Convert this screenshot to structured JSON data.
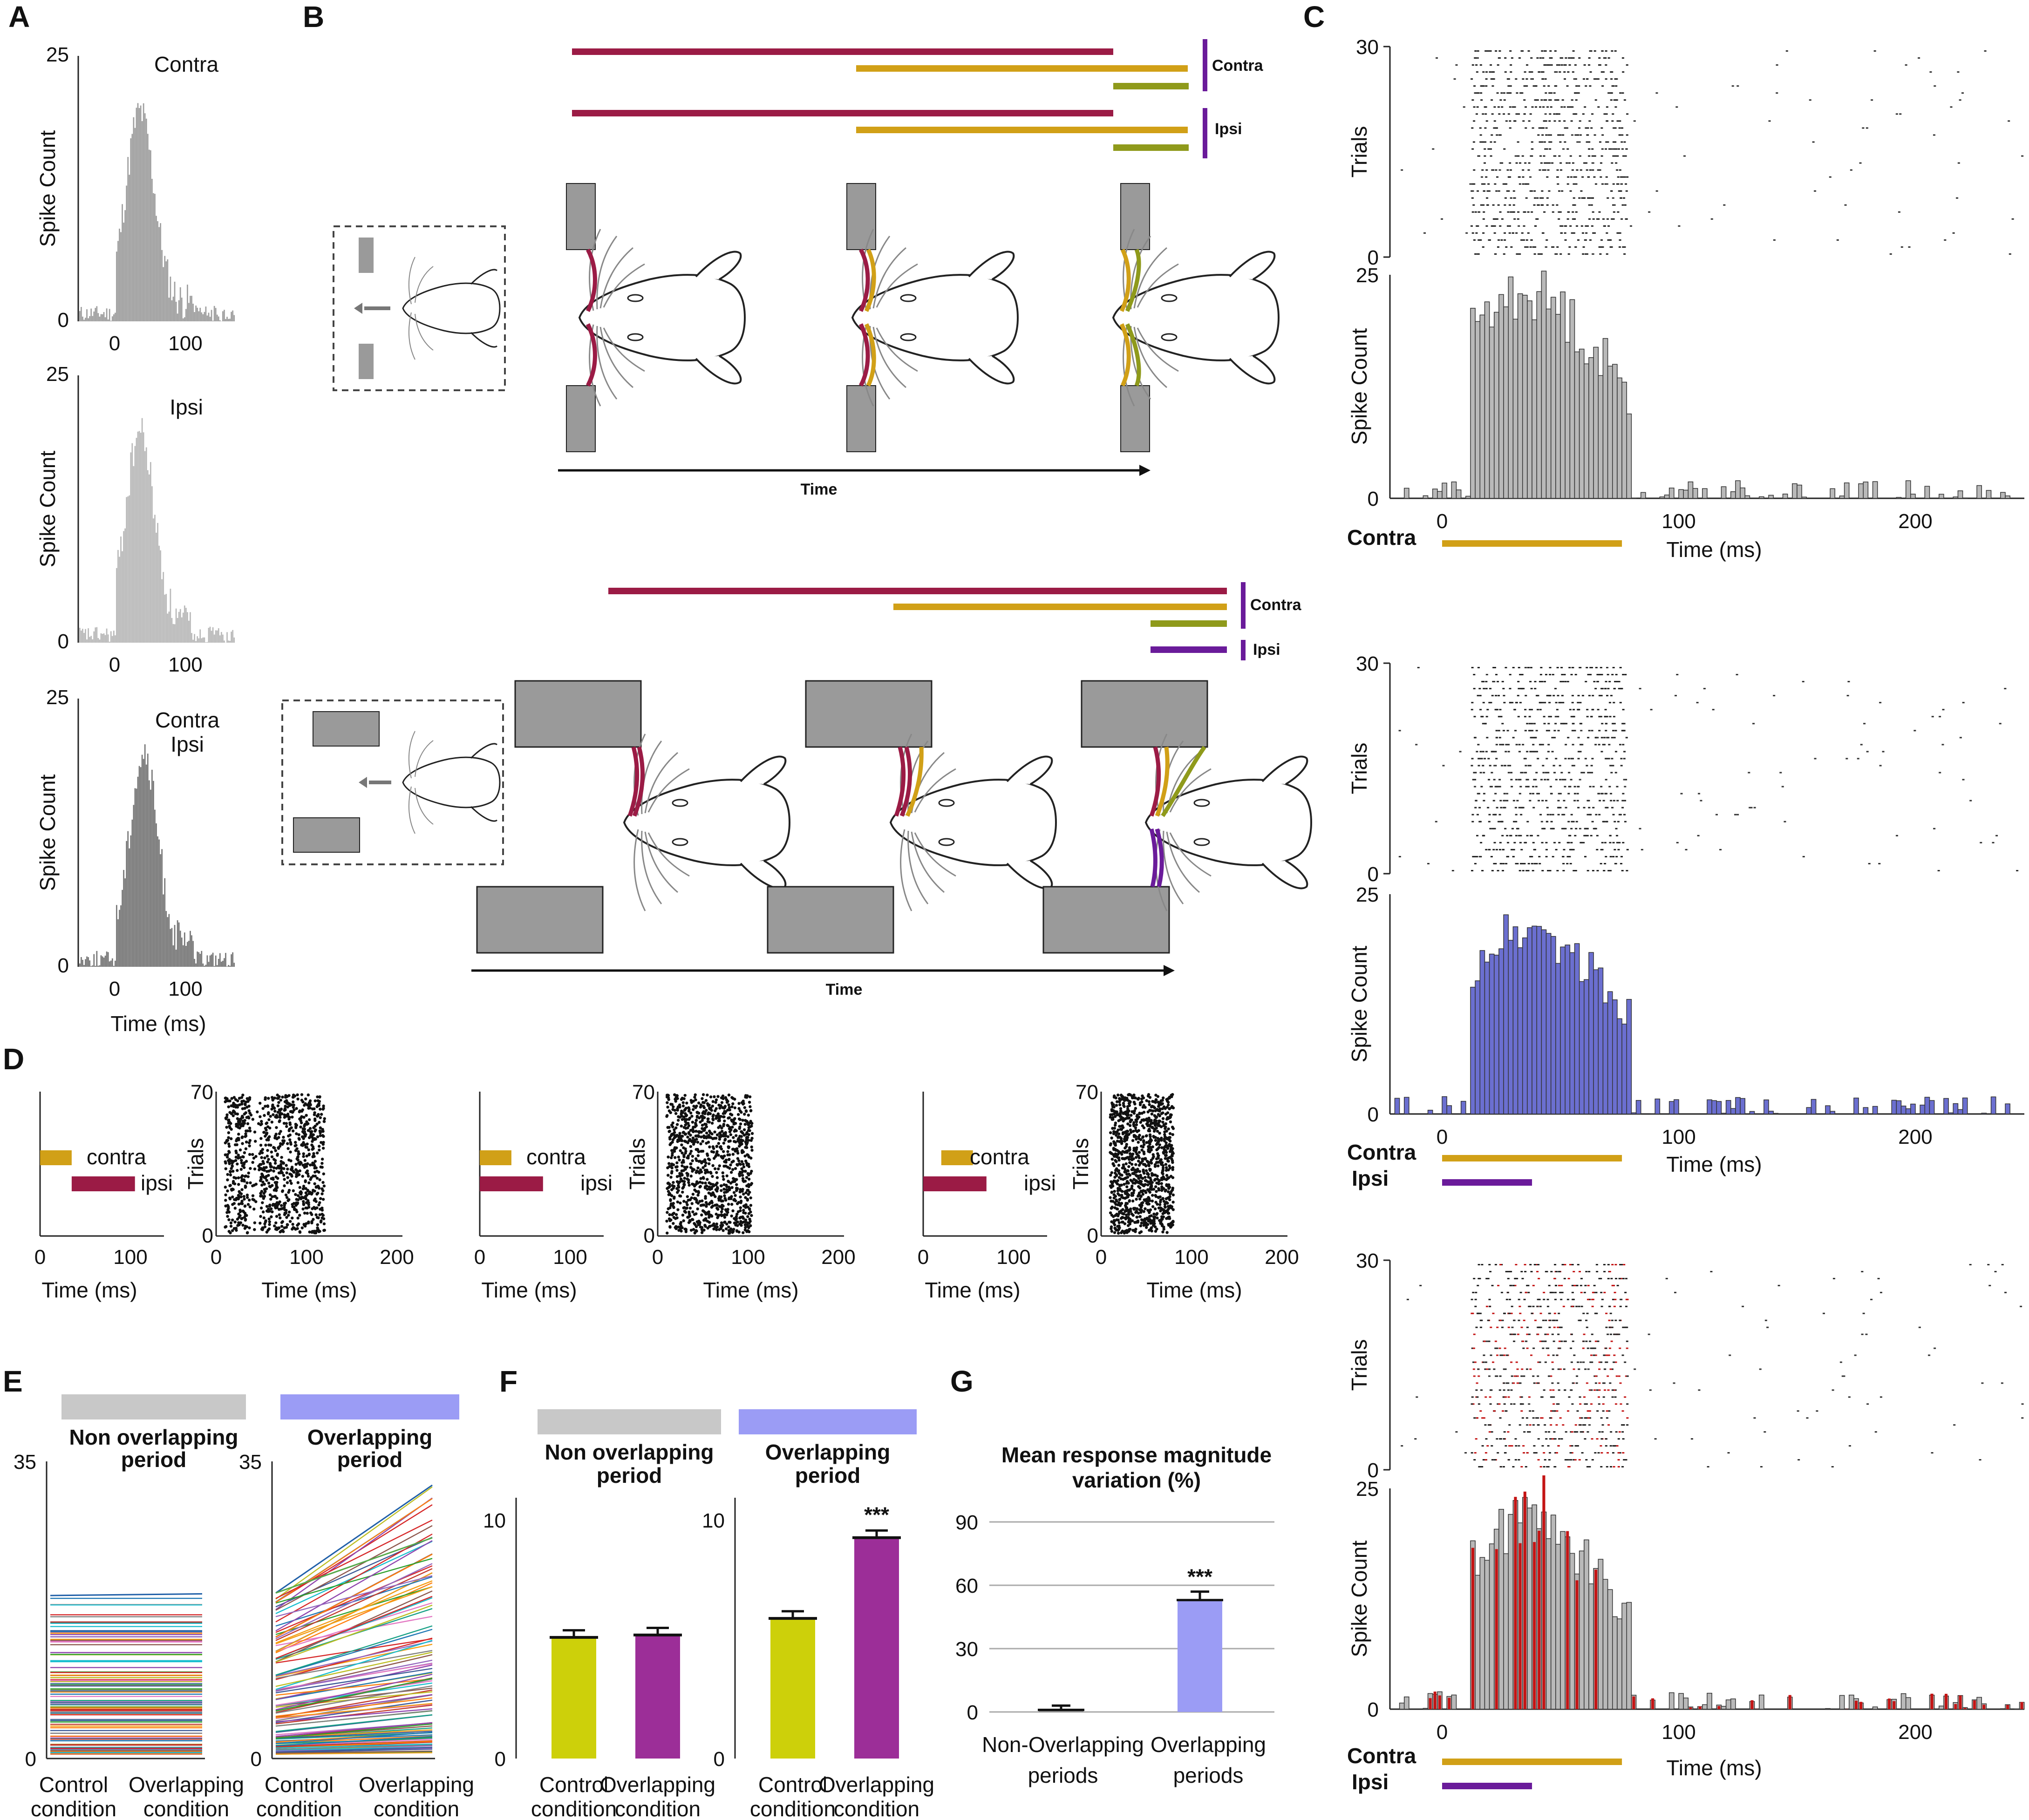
{
  "panels": {
    "A": "A",
    "B": "B",
    "C": "C",
    "D": "D",
    "E": "E",
    "F": "F",
    "G": "G"
  },
  "colors": {
    "hist_dark": "#777777",
    "hist_mid": "#9e9e9e",
    "hist_light": "#b9b9b9",
    "maroon": "#9b1b45",
    "gold": "#d1a017",
    "olive": "#8f9a1b",
    "purple": "#6a1b9a",
    "blue_hist": "#6b6fd0",
    "red_hist": "#c41414",
    "yellow_bar": "#cdd00a",
    "magenta_bar": "#9c2e98",
    "lavender": "#9b9cf5",
    "grey_header": "#c8c8c8",
    "obstacle": "#9a9a9a"
  },
  "panelA": {
    "ylabel": "Spike Count",
    "xlabel": "Time (ms)",
    "histograms": [
      {
        "label": "Contra",
        "ymax": "25",
        "ymin": "0",
        "xticks": [
          "0",
          "100"
        ]
      },
      {
        "label": "Ipsi",
        "ymax": "25",
        "ymin": "0",
        "xticks": [
          "0",
          "100"
        ]
      },
      {
        "label": "Contra",
        "label2": "Ipsi",
        "ymax": "25",
        "ymin": "0",
        "xticks": [
          "0",
          "100"
        ]
      }
    ]
  },
  "panelB": {
    "top": {
      "contra": "Contra",
      "ipsi": "Ipsi",
      "axis": "Time"
    },
    "bottom": {
      "contra": "Contra",
      "ipsi": "Ipsi",
      "axis": "Time"
    }
  },
  "panelC": {
    "trials_label": "Trials",
    "count_label": "Spike Count",
    "xlabel": "Time (ms)",
    "raster_ticks": [
      "30",
      "0"
    ],
    "hist_ticks": [
      "25",
      "0"
    ],
    "xticks": [
      "0",
      "100",
      "200"
    ],
    "rows": [
      {
        "stim1": "Contra",
        "stim2": ""
      },
      {
        "stim1": "Contra",
        "stim2": "Ipsi"
      },
      {
        "stim1": "Contra",
        "stim2": "Ipsi"
      }
    ]
  },
  "panelD": {
    "contra": "contra",
    "ipsi": "ipsi",
    "trials": "Trials",
    "xlabel": "Time (ms)",
    "yticks": [
      "70",
      "0"
    ],
    "stim_xticks": [
      "0",
      "100"
    ],
    "raster_xticks": [
      "0",
      "100",
      "200"
    ],
    "groups": [
      {
        "contra_ms": [
          0,
          35
        ],
        "ipsi_ms": [
          35,
          105
        ]
      },
      {
        "contra_ms": [
          0,
          35
        ],
        "ipsi_ms": [
          0,
          70
        ]
      },
      {
        "contra_ms": [
          20,
          55
        ],
        "ipsi_ms": [
          0,
          70
        ]
      }
    ]
  },
  "panelE": {
    "headers": [
      "Non overlapping\nperiod",
      "Overlapping\nperiod"
    ],
    "yticks": [
      "35",
      "0"
    ],
    "xcats": [
      "Control\ncondition",
      "Overlapping\ncondition"
    ]
  },
  "panelF": {
    "headers": [
      "Non overlapping\nperiod",
      "Overlapping\nperiod"
    ],
    "yticks": [
      "10",
      "0"
    ],
    "xcats": [
      "Control\ncondition",
      "Overlapping\ncondition"
    ],
    "sig": "***"
  },
  "panelG": {
    "title": "Mean response magnitude\nvariation (%)",
    "yticks": [
      "90",
      "60",
      "30",
      "0"
    ],
    "xcats": [
      "Non-Overlapping\nperiods",
      "Overlapping\nperiods"
    ],
    "sig": "***"
  },
  "chart_data": [
    {
      "type": "bar",
      "id": "E-non-overlapping",
      "title": "Non overlapping period",
      "ylim": [
        0,
        35
      ],
      "categories": [
        "Control condition",
        "Overlapping condition"
      ],
      "series_note": "paired lines per neuron; values approximately equal between conditions",
      "example_pairs": [
        [
          19,
          19
        ],
        [
          17,
          17
        ],
        [
          15,
          15
        ],
        [
          13,
          13
        ],
        [
          11,
          11
        ],
        [
          9,
          9
        ],
        [
          7,
          7
        ],
        [
          5,
          5
        ],
        [
          3,
          3
        ],
        [
          1,
          1
        ]
      ]
    },
    {
      "type": "bar",
      "id": "E-overlapping",
      "title": "Overlapping period",
      "ylim": [
        0,
        35
      ],
      "categories": [
        "Control condition",
        "Overlapping condition"
      ],
      "series_note": "paired lines per neuron; values increase in overlapping condition",
      "example_pairs": [
        [
          19,
          32
        ],
        [
          17,
          25
        ],
        [
          15,
          22
        ],
        [
          13,
          19
        ],
        [
          11,
          16
        ],
        [
          9,
          13
        ],
        [
          7,
          10
        ],
        [
          5,
          7
        ],
        [
          3,
          4.5
        ],
        [
          1,
          1.5
        ]
      ]
    },
    {
      "type": "bar",
      "id": "F-non-overlapping",
      "title": "Non overlapping period",
      "ylim": [
        0,
        10
      ],
      "categories": [
        "Control condition",
        "Overlapping condition"
      ],
      "values": [
        5.1,
        5.2
      ],
      "errors": [
        0.3,
        0.3
      ]
    },
    {
      "type": "bar",
      "id": "F-overlapping",
      "title": "Overlapping period",
      "ylim": [
        0,
        10
      ],
      "categories": [
        "Control condition",
        "Overlapping condition"
      ],
      "values": [
        5.9,
        9.3
      ],
      "errors": [
        0.3,
        0.3
      ]
    },
    {
      "type": "bar",
      "id": "G",
      "title": "Mean response magnitude variation (%)",
      "ylim": [
        0,
        90
      ],
      "categories": [
        "Non-Overlapping periods",
        "Overlapping periods"
      ],
      "values": [
        1,
        53
      ],
      "errors": [
        2,
        4
      ]
    }
  ]
}
